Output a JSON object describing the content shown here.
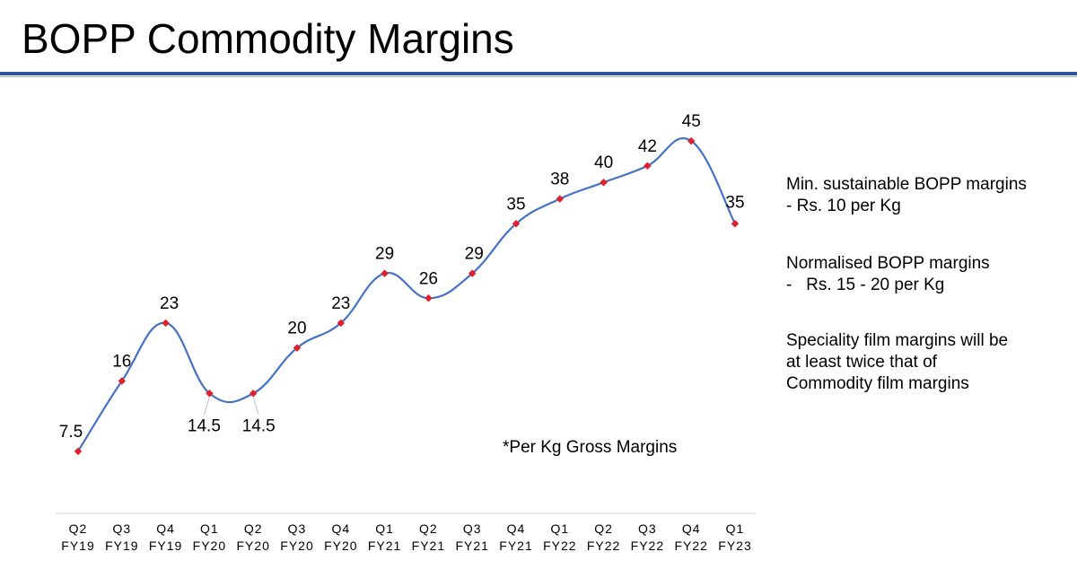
{
  "slide": {
    "title": "BOPP Commodity Margins"
  },
  "notes": {
    "min_line1": "Min. sustainable BOPP margins",
    "min_line2": "- Rs. 10 per Kg",
    "norm_line1": "Normalised BOPP margins",
    "norm_line2": "-   Rs. 15 - 20 per Kg",
    "spec_line1": "Speciality film margins will be",
    "spec_line2": "at least twice that of",
    "spec_line3": "Commodity film margins"
  },
  "footnote": "*Per Kg Gross Margins",
  "colors": {
    "line": "#4472c4",
    "marker": "#e0202a",
    "title_rule": "#2f5597"
  },
  "chart_data": {
    "type": "line",
    "categories": [
      [
        "Q2",
        "FY19"
      ],
      [
        "Q3",
        "FY19"
      ],
      [
        "Q4",
        "FY19"
      ],
      [
        "Q1",
        "FY20"
      ],
      [
        "Q2",
        "FY20"
      ],
      [
        "Q3",
        "FY20"
      ],
      [
        "Q4",
        "FY20"
      ],
      [
        "Q1",
        "FY21"
      ],
      [
        "Q2",
        "FY21"
      ],
      [
        "Q3",
        "FY21"
      ],
      [
        "Q4",
        "FY21"
      ],
      [
        "Q1",
        "FY22"
      ],
      [
        "Q2",
        "FY22"
      ],
      [
        "Q3",
        "FY22"
      ],
      [
        "Q4",
        "FY22"
      ],
      [
        "Q1",
        "FY23"
      ]
    ],
    "values": [
      7.5,
      16,
      23,
      14.5,
      14.5,
      20,
      23,
      29,
      26,
      29,
      35,
      38,
      40,
      42,
      45,
      35
    ],
    "data_labels": [
      "7.5",
      "16",
      "23",
      "14.5",
      "14.5",
      "20",
      "23",
      "29",
      "26",
      "29",
      "35",
      "38",
      "40",
      "42",
      "45",
      "35"
    ],
    "smooth": true,
    "title": "",
    "xlabel": "",
    "ylabel": "",
    "ylim": [
      0,
      50
    ],
    "grid": false,
    "legend": "none"
  }
}
